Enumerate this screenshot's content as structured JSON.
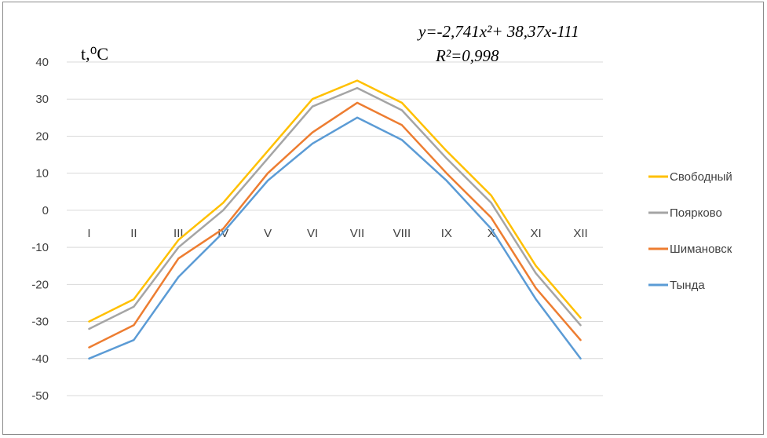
{
  "chart_data": {
    "type": "line",
    "ylabel": "t,⁰C",
    "ylim": [
      -50,
      40
    ],
    "yticks": [
      40,
      30,
      20,
      10,
      0,
      -10,
      -20,
      -30,
      -40,
      -50
    ],
    "categories": [
      "I",
      "II",
      "III",
      "IV",
      "V",
      "VI",
      "VII",
      "VIII",
      "IX",
      "X",
      "XI",
      "XII"
    ],
    "grid": true,
    "legend_position": "right",
    "annotation": {
      "equation": "y=-2,741x²+ 38,37x-111",
      "r2": "R²=0,998"
    },
    "series": [
      {
        "name": "Свободный",
        "color": "#FFC000",
        "values": [
          -30,
          -24,
          -8,
          2,
          16,
          30,
          35,
          29,
          16,
          4,
          -15,
          -29
        ]
      },
      {
        "name": "Поярково",
        "color": "#A5A5A5",
        "values": [
          -32,
          -26,
          -10,
          0,
          14,
          28,
          33,
          27,
          14,
          2,
          -17,
          -31
        ]
      },
      {
        "name": "Шимановск",
        "color": "#ED7D31",
        "values": [
          -37,
          -31,
          -13,
          -5,
          10,
          21,
          29,
          23,
          10,
          -2,
          -21,
          -35
        ]
      },
      {
        "name": "Тында",
        "color": "#5B9BD5",
        "values": [
          -40,
          -35,
          -18,
          -6,
          8,
          18,
          25,
          19,
          8,
          -5,
          -24,
          -40
        ]
      }
    ]
  }
}
